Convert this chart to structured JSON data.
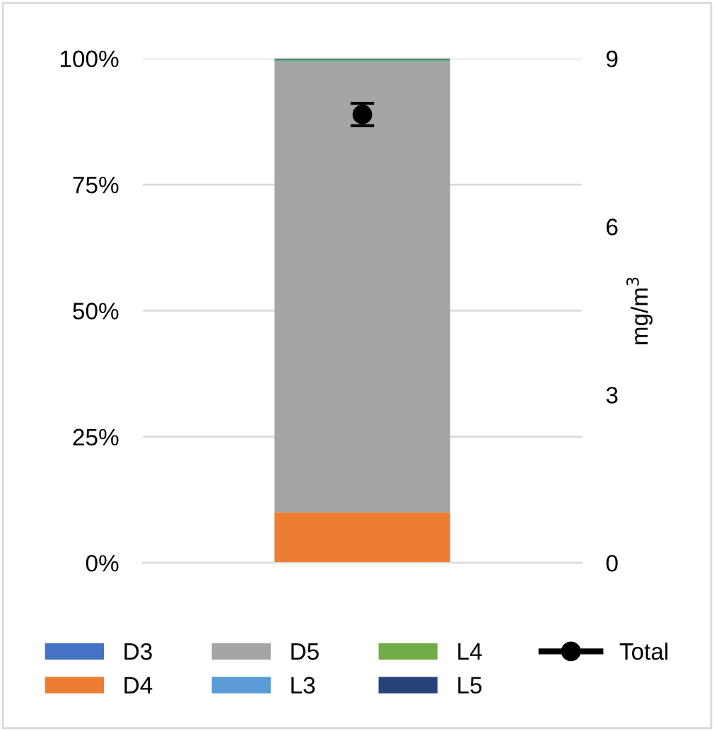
{
  "chart_data": {
    "type": "bar",
    "stacked": true,
    "categories": [
      null
    ],
    "series": [
      {
        "name": "D3",
        "color": "#4472c4",
        "values": [
          0
        ]
      },
      {
        "name": "D4",
        "color": "#ed7d31",
        "values": [
          10
        ]
      },
      {
        "name": "D5",
        "color": "#a5a5a5",
        "values": [
          89.3
        ]
      },
      {
        "name": "L3",
        "color": "#5b9bd5",
        "values": [
          0.2
        ]
      },
      {
        "name": "L4",
        "color": "#70ad47",
        "values": [
          0.3
        ]
      },
      {
        "name": "L5",
        "color": "#264478",
        "values": [
          0.2
        ]
      },
      {
        "name": "Total",
        "type": "line",
        "axis": "y2",
        "color": "#000000",
        "marker": "circle",
        "values": [
          8.0
        ],
        "errors": [
          0.2
        ]
      }
    ],
    "ylim": [
      0,
      100
    ],
    "yticks": [
      {
        "value": 0,
        "label": "0%"
      },
      {
        "value": 25,
        "label": "25%"
      },
      {
        "value": 50,
        "label": "50%"
      },
      {
        "value": 75,
        "label": "75%"
      },
      {
        "value": 100,
        "label": "100%"
      }
    ],
    "y2lim": [
      0,
      9
    ],
    "y2ticks": [
      0,
      3,
      6,
      9
    ],
    "y2label": "mg/m$^{3}$",
    "grid": "y",
    "legend": "bottom"
  }
}
